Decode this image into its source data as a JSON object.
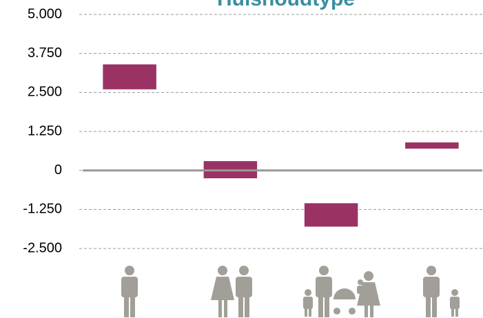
{
  "chart_data": {
    "type": "range-bar",
    "title": "Huishoudtype",
    "categories": [
      null,
      null,
      null,
      null
    ],
    "low": [
      2600,
      -250,
      -1800,
      700
    ],
    "high": [
      3400,
      300,
      -1050,
      900
    ],
    "color": "#9b3264",
    "ylim": [
      -2500,
      5000
    ],
    "yticks": [
      {
        "value": -2500,
        "label": "-2.500"
      },
      {
        "value": -1250,
        "label": "-1.250"
      },
      0,
      {
        "value": 1250,
        "label": "1.250"
      },
      {
        "value": 2500,
        "label": "2.500"
      },
      {
        "value": 3750,
        "label": "3.750"
      },
      {
        "value": 5000,
        "label": "5.000"
      }
    ],
    "grid": true
  }
}
